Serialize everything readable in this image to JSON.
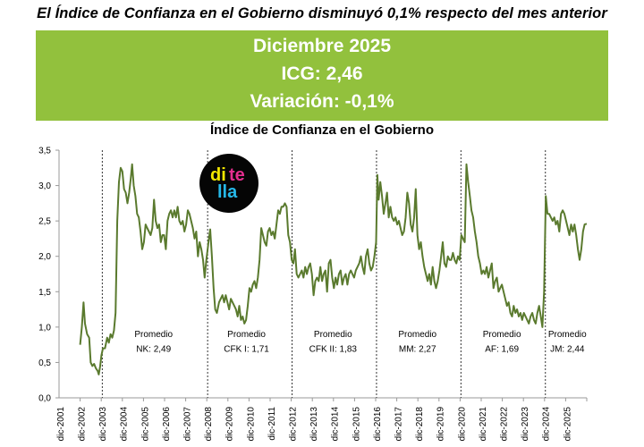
{
  "headline": "El Índice de Confianza en el Gobierno disminuyó 0,1% respecto del mes anterior",
  "banner": {
    "month": "Diciembre 2025",
    "icg": "ICG: 2,46",
    "variation": "Variación: -0,1%",
    "color": "#92c13d"
  },
  "logo": {
    "line1a": "di",
    "line1b": "te",
    "line2": "lla",
    "colors": [
      "#f2e600",
      "#e52e8f",
      "#26b8e8"
    ]
  },
  "chart_data": {
    "type": "line",
    "title": "Índice de Confianza en el Gobierno",
    "xlabel": "",
    "ylabel": "",
    "ylim": [
      0,
      3.5
    ],
    "yticks": [
      "0,0",
      "0,5",
      "1,0",
      "1,5",
      "2,0",
      "2,5",
      "3,0",
      "3,5"
    ],
    "grid": false,
    "line_color": "#5a7a2e",
    "x_start_year": 2001,
    "x_end_year": 2025,
    "x_tick_labels": [
      "dic-2001",
      "dic-2002",
      "dic-2003",
      "dic-2004",
      "dic-2005",
      "dic-2006",
      "dic-2007",
      "dic-2008",
      "dic-2009",
      "dic-2010",
      "dic-2011",
      "dic-2012",
      "dic-2013",
      "dic-2014",
      "dic-2015",
      "dic-2016",
      "dic-2017",
      "dic-2018",
      "dic-2019",
      "dic-2020",
      "dic-2021",
      "dic-2022",
      "dic-2023",
      "dic-2024",
      "dic-2025"
    ],
    "separators": [
      2002.97,
      2007.96,
      2011.96,
      2015.96,
      2019.96,
      2023.96
    ],
    "periods": [
      {
        "label": "Promedio",
        "value": "NK: 2,49",
        "x": 2005.4
      },
      {
        "label": "Promedio",
        "value": "CFK I: 1,71",
        "x": 2009.8
      },
      {
        "label": "Promedio",
        "value": "CFK II: 1,83",
        "x": 2013.9
      },
      {
        "label": "Promedio",
        "value": "MM: 2,27",
        "x": 2017.9
      },
      {
        "label": "Promedio",
        "value": "AF: 1,69",
        "x": 2021.9
      },
      {
        "label": "Promedio",
        "value": "JM: 2,44",
        "x": 2025.0
      }
    ],
    "points": [
      [
        2001.92,
        0.75
      ],
      [
        2002.0,
        1.0
      ],
      [
        2002.08,
        1.35
      ],
      [
        2002.15,
        1.05
      ],
      [
        2002.25,
        0.9
      ],
      [
        2002.35,
        0.85
      ],
      [
        2002.42,
        0.5
      ],
      [
        2002.5,
        0.45
      ],
      [
        2002.58,
        0.48
      ],
      [
        2002.66,
        0.42
      ],
      [
        2002.75,
        0.38
      ],
      [
        2002.8,
        0.33
      ],
      [
        2002.87,
        0.45
      ],
      [
        2002.93,
        0.6
      ],
      [
        2003.0,
        0.7
      ],
      [
        2003.1,
        0.7
      ],
      [
        2003.2,
        0.85
      ],
      [
        2003.28,
        0.78
      ],
      [
        2003.36,
        0.9
      ],
      [
        2003.44,
        0.85
      ],
      [
        2003.52,
        0.95
      ],
      [
        2003.6,
        1.2
      ],
      [
        2003.68,
        2.5
      ],
      [
        2003.76,
        3.05
      ],
      [
        2003.84,
        3.25
      ],
      [
        2003.92,
        3.2
      ],
      [
        2004.0,
        2.95
      ],
      [
        2004.08,
        2.9
      ],
      [
        2004.16,
        2.75
      ],
      [
        2004.24,
        2.9
      ],
      [
        2004.32,
        3.1
      ],
      [
        2004.38,
        3.3
      ],
      [
        2004.46,
        3.0
      ],
      [
        2004.54,
        2.85
      ],
      [
        2004.62,
        2.6
      ],
      [
        2004.7,
        2.55
      ],
      [
        2004.78,
        2.35
      ],
      [
        2004.86,
        2.1
      ],
      [
        2004.94,
        2.2
      ],
      [
        2005.02,
        2.45
      ],
      [
        2005.1,
        2.4
      ],
      [
        2005.18,
        2.35
      ],
      [
        2005.26,
        2.3
      ],
      [
        2005.34,
        2.4
      ],
      [
        2005.42,
        2.8
      ],
      [
        2005.5,
        2.5
      ],
      [
        2005.58,
        2.4
      ],
      [
        2005.66,
        2.45
      ],
      [
        2005.74,
        2.2
      ],
      [
        2005.82,
        2.3
      ],
      [
        2005.9,
        2.3
      ],
      [
        2005.98,
        2.1
      ],
      [
        2006.06,
        2.5
      ],
      [
        2006.14,
        2.6
      ],
      [
        2006.22,
        2.65
      ],
      [
        2006.3,
        2.55
      ],
      [
        2006.38,
        2.65
      ],
      [
        2006.46,
        2.55
      ],
      [
        2006.54,
        2.7
      ],
      [
        2006.62,
        2.5
      ],
      [
        2006.7,
        2.45
      ],
      [
        2006.78,
        2.5
      ],
      [
        2006.86,
        2.35
      ],
      [
        2006.94,
        2.45
      ],
      [
        2007.02,
        2.65
      ],
      [
        2007.1,
        2.6
      ],
      [
        2007.18,
        2.5
      ],
      [
        2007.26,
        2.4
      ],
      [
        2007.34,
        2.25
      ],
      [
        2007.42,
        2.35
      ],
      [
        2007.5,
        2.0
      ],
      [
        2007.58,
        2.2
      ],
      [
        2007.66,
        2.1
      ],
      [
        2007.74,
        1.95
      ],
      [
        2007.82,
        1.7
      ],
      [
        2007.9,
        1.95
      ],
      [
        2008.0,
        2.2
      ],
      [
        2008.08,
        2.38
      ],
      [
        2008.16,
        2.0
      ],
      [
        2008.24,
        1.55
      ],
      [
        2008.32,
        1.25
      ],
      [
        2008.4,
        1.2
      ],
      [
        2008.5,
        1.35
      ],
      [
        2008.58,
        1.4
      ],
      [
        2008.66,
        1.45
      ],
      [
        2008.74,
        1.35
      ],
      [
        2008.82,
        1.45
      ],
      [
        2008.9,
        1.35
      ],
      [
        2008.98,
        1.25
      ],
      [
        2009.06,
        1.4
      ],
      [
        2009.14,
        1.35
      ],
      [
        2009.22,
        1.3
      ],
      [
        2009.3,
        1.25
      ],
      [
        2009.38,
        1.15
      ],
      [
        2009.46,
        1.3
      ],
      [
        2009.54,
        1.1
      ],
      [
        2009.62,
        1.15
      ],
      [
        2009.7,
        1.05
      ],
      [
        2009.78,
        1.1
      ],
      [
        2009.86,
        1.3
      ],
      [
        2009.94,
        1.55
      ],
      [
        2010.02,
        1.5
      ],
      [
        2010.1,
        1.6
      ],
      [
        2010.18,
        1.65
      ],
      [
        2010.26,
        1.55
      ],
      [
        2010.34,
        1.7
      ],
      [
        2010.42,
        1.95
      ],
      [
        2010.5,
        2.4
      ],
      [
        2010.58,
        2.3
      ],
      [
        2010.66,
        2.2
      ],
      [
        2010.74,
        2.15
      ],
      [
        2010.82,
        2.35
      ],
      [
        2010.9,
        2.4
      ],
      [
        2010.98,
        2.3
      ],
      [
        2011.06,
        2.35
      ],
      [
        2011.14,
        2.25
      ],
      [
        2011.22,
        2.45
      ],
      [
        2011.3,
        2.65
      ],
      [
        2011.38,
        2.6
      ],
      [
        2011.46,
        2.7
      ],
      [
        2011.54,
        2.7
      ],
      [
        2011.62,
        2.75
      ],
      [
        2011.7,
        2.7
      ],
      [
        2011.78,
        2.3
      ],
      [
        2011.86,
        2.2
      ],
      [
        2011.94,
        1.95
      ],
      [
        2012.02,
        1.9
      ],
      [
        2012.1,
        2.1
      ],
      [
        2012.18,
        1.75
      ],
      [
        2012.26,
        1.7
      ],
      [
        2012.34,
        1.75
      ],
      [
        2012.42,
        1.8
      ],
      [
        2012.5,
        1.7
      ],
      [
        2012.58,
        1.85
      ],
      [
        2012.66,
        1.75
      ],
      [
        2012.74,
        1.85
      ],
      [
        2012.82,
        1.9
      ],
      [
        2012.9,
        1.75
      ],
      [
        2012.98,
        1.45
      ],
      [
        2013.06,
        1.65
      ],
      [
        2013.14,
        1.7
      ],
      [
        2013.22,
        1.65
      ],
      [
        2013.3,
        1.85
      ],
      [
        2013.38,
        1.65
      ],
      [
        2013.46,
        1.75
      ],
      [
        2013.54,
        1.8
      ],
      [
        2013.62,
        1.5
      ],
      [
        2013.7,
        1.9
      ],
      [
        2013.78,
        1.95
      ],
      [
        2013.86,
        1.7
      ],
      [
        2013.94,
        1.55
      ],
      [
        2014.02,
        1.7
      ],
      [
        2014.1,
        1.6
      ],
      [
        2014.18,
        1.75
      ],
      [
        2014.26,
        1.8
      ],
      [
        2014.34,
        1.6
      ],
      [
        2014.42,
        1.7
      ],
      [
        2014.5,
        1.75
      ],
      [
        2014.58,
        1.6
      ],
      [
        2014.66,
        1.75
      ],
      [
        2014.74,
        1.8
      ],
      [
        2014.82,
        1.75
      ],
      [
        2014.9,
        1.7
      ],
      [
        2014.98,
        1.8
      ],
      [
        2015.06,
        1.85
      ],
      [
        2015.14,
        1.9
      ],
      [
        2015.22,
        2.0
      ],
      [
        2015.3,
        1.85
      ],
      [
        2015.38,
        1.75
      ],
      [
        2015.46,
        2.0
      ],
      [
        2015.54,
        2.1
      ],
      [
        2015.62,
        1.9
      ],
      [
        2015.7,
        1.8
      ],
      [
        2015.78,
        1.85
      ],
      [
        2015.86,
        2.0
      ],
      [
        2015.94,
        2.2
      ],
      [
        2016.0,
        3.15
      ],
      [
        2016.06,
        2.8
      ],
      [
        2016.14,
        3.05
      ],
      [
        2016.22,
        2.85
      ],
      [
        2016.3,
        2.6
      ],
      [
        2016.38,
        2.75
      ],
      [
        2016.46,
        2.9
      ],
      [
        2016.54,
        2.55
      ],
      [
        2016.62,
        2.7
      ],
      [
        2016.7,
        2.55
      ],
      [
        2016.78,
        2.5
      ],
      [
        2016.86,
        2.55
      ],
      [
        2016.94,
        2.45
      ],
      [
        2017.02,
        2.5
      ],
      [
        2017.1,
        2.4
      ],
      [
        2017.18,
        2.3
      ],
      [
        2017.26,
        2.35
      ],
      [
        2017.34,
        2.55
      ],
      [
        2017.42,
        2.9
      ],
      [
        2017.5,
        2.75
      ],
      [
        2017.58,
        2.45
      ],
      [
        2017.66,
        2.35
      ],
      [
        2017.74,
        2.55
      ],
      [
        2017.82,
        2.95
      ],
      [
        2017.9,
        2.3
      ],
      [
        2017.98,
        2.1
      ],
      [
        2018.06,
        2.2
      ],
      [
        2018.14,
        2.0
      ],
      [
        2018.22,
        1.85
      ],
      [
        2018.3,
        1.75
      ],
      [
        2018.38,
        1.65
      ],
      [
        2018.46,
        1.75
      ],
      [
        2018.54,
        1.6
      ],
      [
        2018.62,
        1.85
      ],
      [
        2018.7,
        1.65
      ],
      [
        2018.78,
        1.55
      ],
      [
        2018.86,
        1.65
      ],
      [
        2018.94,
        1.8
      ],
      [
        2019.02,
        2.0
      ],
      [
        2019.1,
        2.2
      ],
      [
        2019.18,
        1.9
      ],
      [
        2019.26,
        1.85
      ],
      [
        2019.34,
        2.0
      ],
      [
        2019.42,
        1.95
      ],
      [
        2019.5,
        1.95
      ],
      [
        2019.58,
        2.05
      ],
      [
        2019.66,
        1.95
      ],
      [
        2019.74,
        1.9
      ],
      [
        2019.82,
        2.0
      ],
      [
        2019.9,
        1.95
      ],
      [
        2019.98,
        2.3
      ],
      [
        2020.06,
        2.25
      ],
      [
        2020.14,
        2.2
      ],
      [
        2020.22,
        3.3
      ],
      [
        2020.3,
        3.05
      ],
      [
        2020.38,
        2.85
      ],
      [
        2020.46,
        2.65
      ],
      [
        2020.54,
        2.55
      ],
      [
        2020.62,
        2.35
      ],
      [
        2020.7,
        2.2
      ],
      [
        2020.78,
        2.0
      ],
      [
        2020.86,
        1.9
      ],
      [
        2020.94,
        1.75
      ],
      [
        2021.02,
        1.8
      ],
      [
        2021.1,
        1.75
      ],
      [
        2021.18,
        1.85
      ],
      [
        2021.26,
        1.7
      ],
      [
        2021.34,
        1.8
      ],
      [
        2021.42,
        1.9
      ],
      [
        2021.5,
        1.55
      ],
      [
        2021.58,
        1.65
      ],
      [
        2021.66,
        1.7
      ],
      [
        2021.74,
        1.5
      ],
      [
        2021.82,
        1.55
      ],
      [
        2021.9,
        1.6
      ],
      [
        2021.98,
        1.5
      ],
      [
        2022.06,
        1.4
      ],
      [
        2022.14,
        1.3
      ],
      [
        2022.22,
        1.35
      ],
      [
        2022.3,
        1.2
      ],
      [
        2022.38,
        1.15
      ],
      [
        2022.46,
        1.3
      ],
      [
        2022.54,
        1.2
      ],
      [
        2022.62,
        1.25
      ],
      [
        2022.7,
        1.15
      ],
      [
        2022.78,
        1.2
      ],
      [
        2022.86,
        1.1
      ],
      [
        2022.94,
        1.2
      ],
      [
        2023.02,
        1.15
      ],
      [
        2023.1,
        1.1
      ],
      [
        2023.18,
        1.05
      ],
      [
        2023.26,
        1.15
      ],
      [
        2023.34,
        1.2
      ],
      [
        2023.42,
        1.1
      ],
      [
        2023.5,
        1.05
      ],
      [
        2023.58,
        1.2
      ],
      [
        2023.66,
        1.3
      ],
      [
        2023.74,
        1.15
      ],
      [
        2023.82,
        1.0
      ],
      [
        2023.9,
        1.5
      ],
      [
        2023.98,
        2.85
      ],
      [
        2024.06,
        2.6
      ],
      [
        2024.14,
        2.6
      ],
      [
        2024.22,
        2.55
      ],
      [
        2024.3,
        2.5
      ],
      [
        2024.38,
        2.55
      ],
      [
        2024.46,
        2.45
      ],
      [
        2024.54,
        2.5
      ],
      [
        2024.62,
        2.35
      ],
      [
        2024.7,
        2.6
      ],
      [
        2024.78,
        2.65
      ],
      [
        2024.86,
        2.6
      ],
      [
        2024.94,
        2.5
      ],
      [
        2025.02,
        2.4
      ],
      [
        2025.1,
        2.3
      ],
      [
        2025.18,
        2.45
      ],
      [
        2025.26,
        2.35
      ],
      [
        2025.34,
        2.45
      ],
      [
        2025.42,
        2.3
      ],
      [
        2025.5,
        2.1
      ],
      [
        2025.58,
        1.95
      ],
      [
        2025.66,
        2.1
      ],
      [
        2025.74,
        2.35
      ],
      [
        2025.82,
        2.45
      ],
      [
        2025.92,
        2.46
      ]
    ]
  }
}
